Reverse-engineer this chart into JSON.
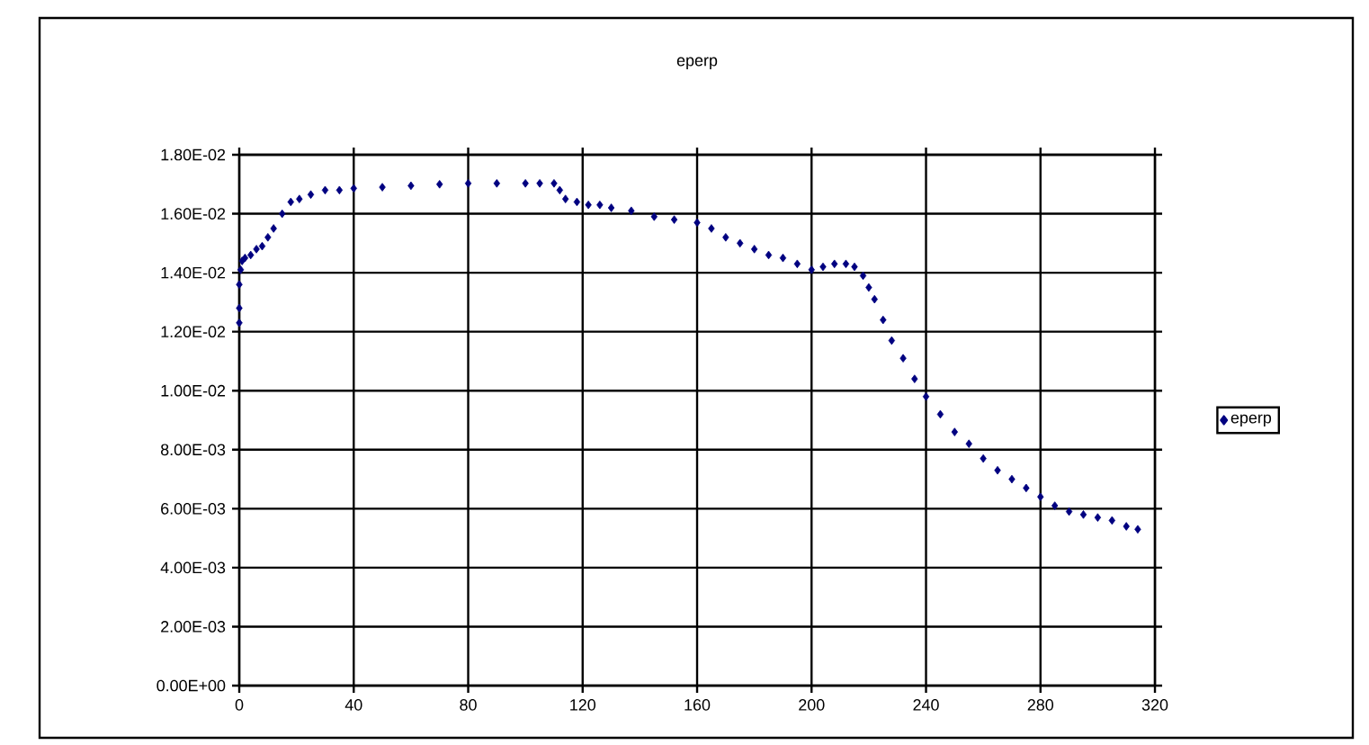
{
  "chart_data": {
    "type": "scatter",
    "title": "eperp",
    "x": [
      0,
      0,
      0,
      0.5,
      1,
      2,
      4,
      6,
      8,
      10,
      12,
      15,
      18,
      21,
      25,
      30,
      35,
      40,
      50,
      60,
      70,
      80,
      90,
      100,
      105,
      110,
      112,
      114,
      118,
      122,
      126,
      130,
      137,
      145,
      152,
      160,
      165,
      170,
      175,
      180,
      185,
      190,
      195,
      200,
      204,
      208,
      212,
      215,
      218,
      220,
      222,
      225,
      228,
      232,
      236,
      240,
      245,
      250,
      255,
      260,
      265,
      270,
      275,
      280,
      285,
      290,
      295,
      300,
      305,
      310,
      314
    ],
    "series": [
      {
        "name": "eperp",
        "color": "#000080",
        "values": [
          0.0123,
          0.0128,
          0.0136,
          0.0141,
          0.0144,
          0.0145,
          0.0146,
          0.0148,
          0.0149,
          0.0152,
          0.0155,
          0.016,
          0.0164,
          0.0165,
          0.01665,
          0.0168,
          0.0168,
          0.01686,
          0.0169,
          0.01695,
          0.017,
          0.01703,
          0.01703,
          0.01703,
          0.01703,
          0.01703,
          0.0168,
          0.0165,
          0.0164,
          0.0163,
          0.0163,
          0.0162,
          0.0161,
          0.0159,
          0.0158,
          0.0157,
          0.0155,
          0.0152,
          0.015,
          0.0148,
          0.0146,
          0.0145,
          0.0143,
          0.0141,
          0.0142,
          0.0143,
          0.0143,
          0.0142,
          0.0139,
          0.0135,
          0.0131,
          0.0124,
          0.0117,
          0.0111,
          0.0104,
          0.0098,
          0.0092,
          0.0086,
          0.0082,
          0.0077,
          0.0073,
          0.007,
          0.0067,
          0.0064,
          0.0061,
          0.0059,
          0.0058,
          0.0057,
          0.0056,
          0.0054,
          0.0053
        ]
      }
    ],
    "xlim": [
      0,
      320
    ],
    "xticks": [
      0,
      40,
      80,
      120,
      160,
      200,
      240,
      280,
      320
    ],
    "ylim": [
      0,
      0.018
    ],
    "yticks": [
      {
        "value": 0,
        "label": "0.00E+00"
      },
      {
        "value": 0.002,
        "label": "2.00E-03"
      },
      {
        "value": 0.004,
        "label": "4.00E-03"
      },
      {
        "value": 0.006,
        "label": "6.00E-03"
      },
      {
        "value": 0.008,
        "label": "8.00E-03"
      },
      {
        "value": 0.01,
        "label": "1.00E-02"
      },
      {
        "value": 0.012,
        "label": "1.20E-02"
      },
      {
        "value": 0.014,
        "label": "1.40E-02"
      },
      {
        "value": 0.016,
        "label": "1.60E-02"
      },
      {
        "value": 0.018,
        "label": "1.80E-02"
      }
    ],
    "grid": true,
    "legend": "right",
    "marker": "diamond"
  }
}
